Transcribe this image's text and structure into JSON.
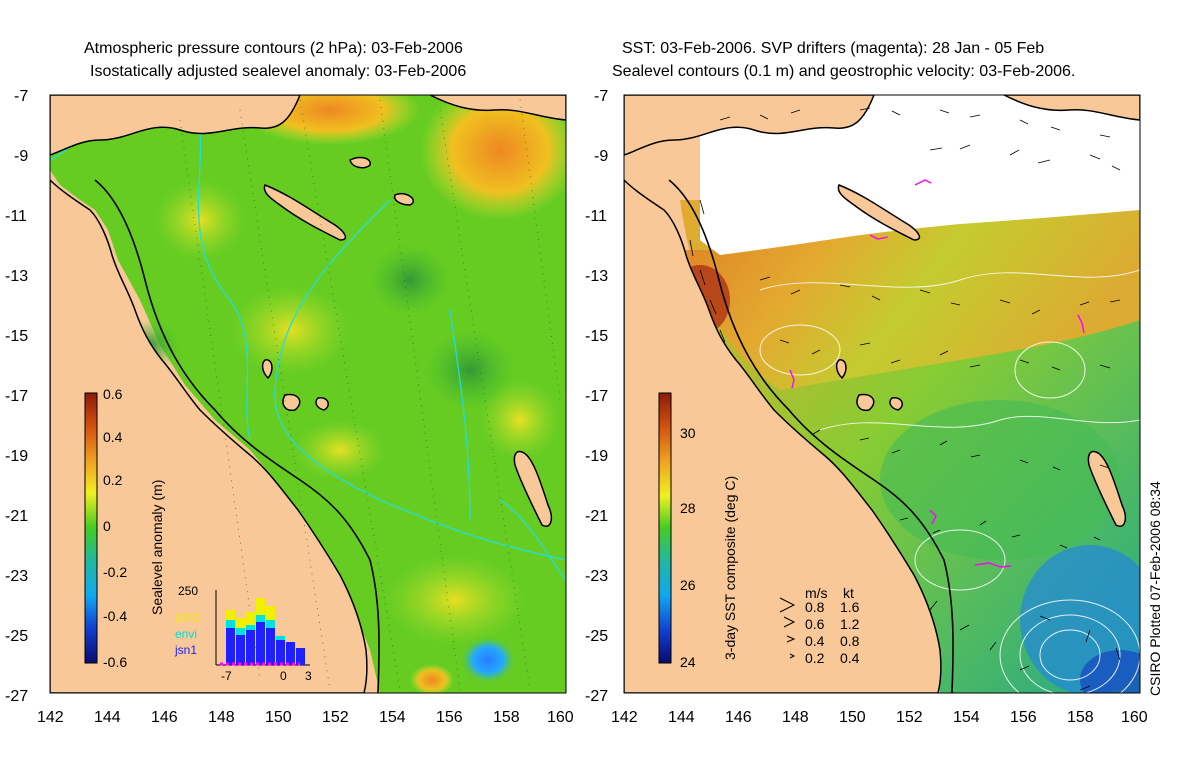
{
  "left_panel": {
    "title_line1": "Atmospheric pressure contours (2 hPa): 03-Feb-2006",
    "title_line2": "Isostatically adjusted sealevel anomaly: 03-Feb-2006",
    "lat_ticks": [
      "-7",
      "-9",
      "-11",
      "-13",
      "-15",
      "-17",
      "-19",
      "-21",
      "-23",
      "-25",
      "-27"
    ],
    "lon_ticks": [
      "142",
      "144",
      "146",
      "148",
      "150",
      "152",
      "154",
      "156",
      "158",
      "160"
    ],
    "colorbar_label": "Sealevel anomaly (m)",
    "colorbar_ticks": [
      "0.6",
      "0.4",
      "0.2",
      "0",
      "-0.2",
      "-0.4",
      "-0.6"
    ],
    "histogram": {
      "max_label": "250",
      "x_labels": [
        "-7",
        "0",
        "3"
      ],
      "legend": [
        "GFO",
        "envi",
        "jsn1"
      ]
    }
  },
  "right_panel": {
    "title_line1": "SST: 03-Feb-2006. SVP drifters (magenta): 28 Jan - 05 Feb",
    "title_line2": "Sealevel contours (0.1 m) and geostrophic velocity: 03-Feb-2006.",
    "lat_ticks": [
      "-7",
      "-9",
      "-11",
      "-13",
      "-15",
      "-17",
      "-19",
      "-21",
      "-23",
      "-25",
      "-27"
    ],
    "lon_ticks": [
      "142",
      "144",
      "146",
      "148",
      "150",
      "152",
      "154",
      "156",
      "158",
      "160"
    ],
    "colorbar_label": "3-day SST composite (deg C)",
    "colorbar_ticks": [
      "30",
      "28",
      "26",
      "24"
    ],
    "velocity_legend": {
      "header_ms": "m/s",
      "header_kt": "kt",
      "rows": [
        {
          "ms": "0.8",
          "kt": "1.6"
        },
        {
          "ms": "0.6",
          "kt": "1.2"
        },
        {
          "ms": "0.4",
          "kt": "0.8"
        },
        {
          "ms": "0.2",
          "kt": "0.4"
        }
      ]
    },
    "credit": "CSIRO Plotted 07-Feb-2006 08:34"
  },
  "colors": {
    "land": "#f8c898",
    "ocean_green": "#66cc22",
    "contour_cyan": "#22dddd",
    "gfo": "#f0f000",
    "envi": "#00e0e0",
    "jsn1": "#2020ff",
    "drifter": "#ff00ff"
  }
}
